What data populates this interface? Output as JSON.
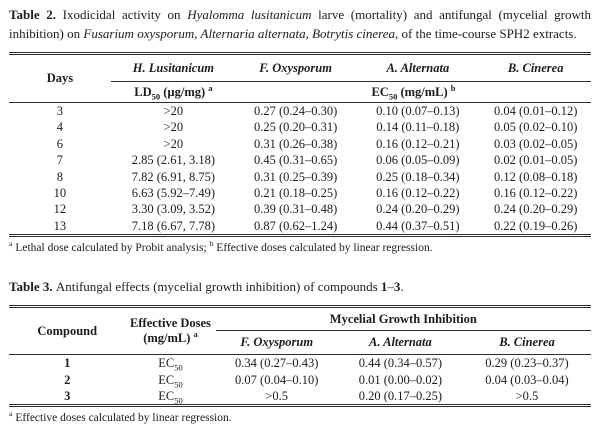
{
  "colors": {
    "text": "#1c1c1c",
    "rule": "#2e2e2e",
    "background": "#ffffff"
  },
  "table2": {
    "caption_runs": [
      {
        "t": "Table 2. ",
        "b": true
      },
      {
        "t": "Ixodicidal activity on "
      },
      {
        "t": "Hyalomma lusitanicum",
        "i": true
      },
      {
        "t": " larve (mortality) and antifungal (mycelial growth inhibition) on "
      },
      {
        "t": "Fusarium oxysporum, Alternaria alternata, Botrytis cinerea",
        "i": true
      },
      {
        "t": ", of the time-course SPH2 extracts."
      }
    ],
    "header": {
      "days": "Days",
      "species": [
        "H. Lusitanicum",
        "F. Oxysporum",
        "A. Alternata",
        "B. Cinerea"
      ],
      "ld50_runs": [
        {
          "t": "LD"
        },
        {
          "t": "50",
          "sub": true
        },
        {
          "t": " (µg/mg) "
        },
        {
          "t": "a",
          "sup": true
        }
      ],
      "ec50_runs": [
        {
          "t": "EC"
        },
        {
          "t": "50",
          "sub": true
        },
        {
          "t": " (mg/mL) "
        },
        {
          "t": "b",
          "sup": true
        }
      ]
    },
    "rows": [
      {
        "day": "3",
        "ld50": ">20",
        "f_oxysporum": "0.27 (0.24–0.30)",
        "a_alternata": "0.10 (0.07–0.13)",
        "b_cinerea": "0.04 (0.01–0.12)"
      },
      {
        "day": "4",
        "ld50": ">20",
        "f_oxysporum": "0.25 (0.20–0.31)",
        "a_alternata": "0.14 (0.11–0.18)",
        "b_cinerea": "0.05 (0.02–0.10)"
      },
      {
        "day": "6",
        "ld50": ">20",
        "f_oxysporum": "0.31 (0.26–0.38)",
        "a_alternata": "0.16 (0.12–0.21)",
        "b_cinerea": "0.03 (0.02–0.05)"
      },
      {
        "day": "7",
        "ld50": "2.85 (2.61, 3.18)",
        "f_oxysporum": "0.45 (0.31–0.65)",
        "a_alternata": "0.06 (0.05–0.09)",
        "b_cinerea": "0.02 (0.01–0.05)"
      },
      {
        "day": "8",
        "ld50": "7.82 (6.91, 8.75)",
        "f_oxysporum": "0.31 (0.25–0.39)",
        "a_alternata": "0.25 (0.18–0.34)",
        "b_cinerea": "0.12 (0.08–0.18)"
      },
      {
        "day": "10",
        "ld50": "6.63 (5.92–7.49)",
        "f_oxysporum": "0.21 (0.18–0.25)",
        "a_alternata": "0.16 (0.12–0.22)",
        "b_cinerea": "0.16 (0.12–0.22)"
      },
      {
        "day": "12",
        "ld50": "3.30 (3.09, 3.52)",
        "f_oxysporum": "0.39 (0.31–0.48)",
        "a_alternata": "0.24 (0.20–0.29)",
        "b_cinerea": "0.24 (0.20–0.29)"
      },
      {
        "day": "13",
        "ld50": "7.18 (6.67, 7.78)",
        "f_oxysporum": "0.87 (0.62–1.24)",
        "a_alternata": "0.44 (0.37–0.51)",
        "b_cinerea": "0.22 (0.19–0.26)"
      }
    ],
    "footnote_runs": [
      {
        "t": "a",
        "sup": true
      },
      {
        "t": " Lethal dose calculated by Probit analysis; "
      },
      {
        "t": "b",
        "sup": true
      },
      {
        "t": " Effective doses calculated by linear regression."
      }
    ]
  },
  "table3": {
    "caption_runs": [
      {
        "t": "Table 3. ",
        "b": true
      },
      {
        "t": "Antifungal effects (mycelial growth inhibition) of compounds "
      },
      {
        "t": "1",
        "b": true
      },
      {
        "t": "–"
      },
      {
        "t": "3",
        "b": true
      },
      {
        "t": "."
      }
    ],
    "header": {
      "compound": "Compound",
      "dose_line1": "Effective Doses",
      "dose_line2_runs": [
        {
          "t": "(mg/mL) "
        },
        {
          "t": "a",
          "sup": true
        }
      ],
      "mgi": "Mycelial Growth Inhibition",
      "species": [
        "F. Oxysporum",
        "A. Alternata",
        "B. Cinerea"
      ]
    },
    "rows": [
      {
        "compound": "1",
        "dose_runs": [
          {
            "t": "EC"
          },
          {
            "t": "50",
            "sub": true
          }
        ],
        "f_oxysporum": "0.34 (0.27–0.43)",
        "a_alternata": "0.44 (0.34–0.57)",
        "b_cinerea": "0.29 (0.23–0.37)"
      },
      {
        "compound": "2",
        "dose_runs": [
          {
            "t": "EC"
          },
          {
            "t": "50",
            "sub": true
          }
        ],
        "f_oxysporum": "0.07 (0.04–0.10)",
        "a_alternata": "0.01 (0.00–0.02)",
        "b_cinerea": "0.04 (0.03–0.04)"
      },
      {
        "compound": "3",
        "dose_runs": [
          {
            "t": "EC"
          },
          {
            "t": "50",
            "sub": true
          }
        ],
        "f_oxysporum": ">0.5",
        "a_alternata": "0.20 (0.17–0.25)",
        "b_cinerea": ">0.5"
      }
    ],
    "footnote_runs": [
      {
        "t": "a",
        "sup": true
      },
      {
        "t": " Effective doses calculated by linear regression."
      }
    ]
  }
}
